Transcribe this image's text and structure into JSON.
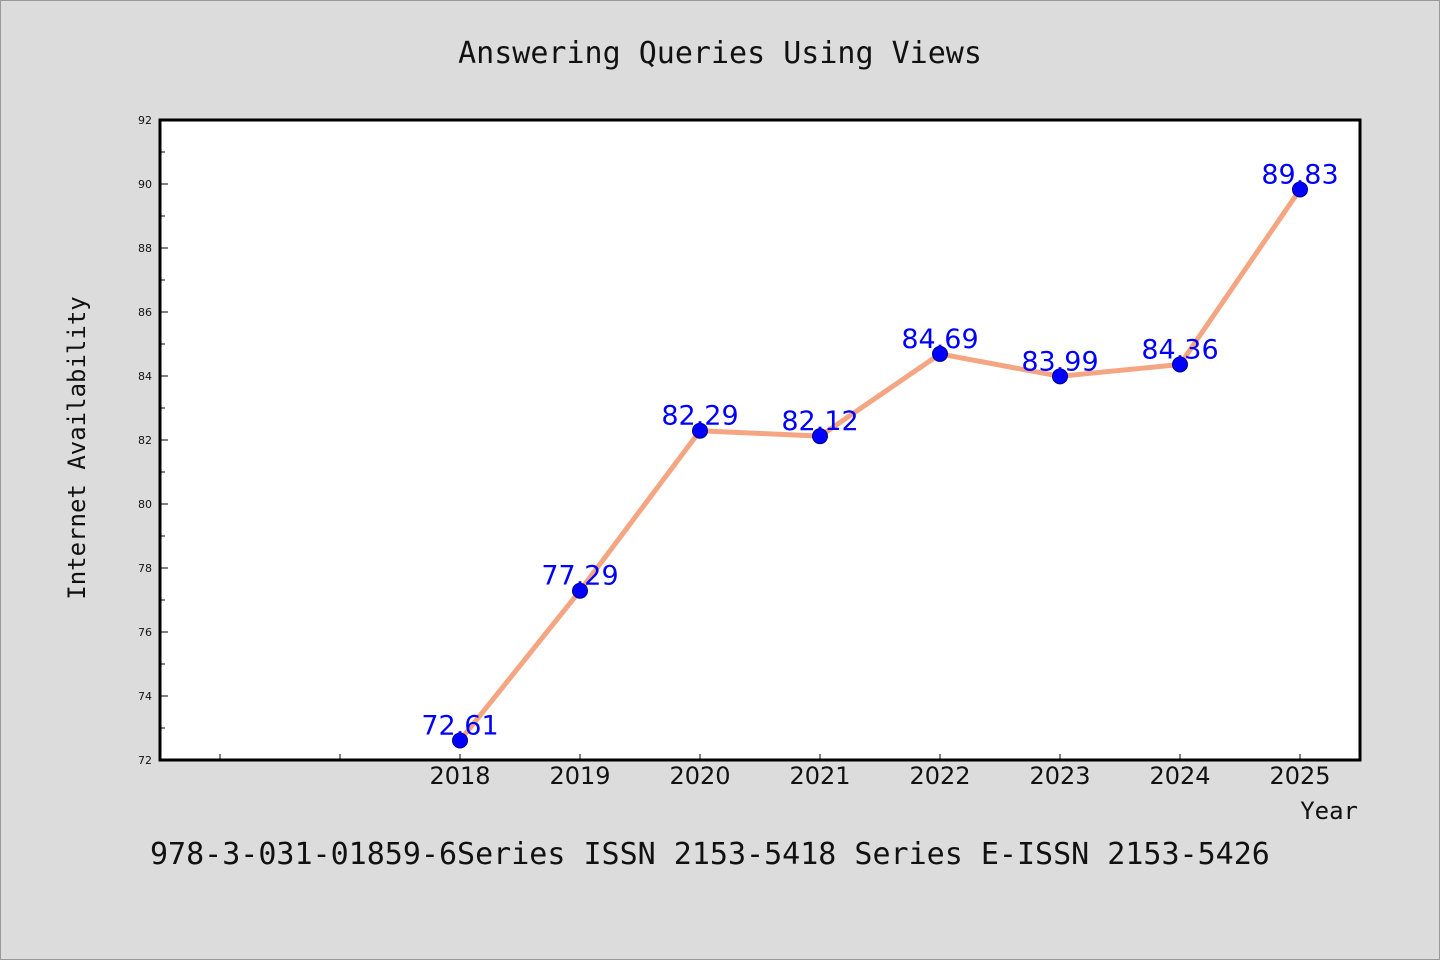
{
  "chart_data": {
    "type": "line",
    "title": "Answering Queries Using Views",
    "xlabel": "Year",
    "ylabel": "Internet Availability",
    "categories": [
      "",
      "",
      "2018",
      "2019",
      "2020",
      "2021",
      "2022",
      "2023",
      "2024",
      "2025"
    ],
    "series": [
      {
        "values": [
          null,
          null,
          72.61,
          77.29,
          82.29,
          82.12,
          84.69,
          83.99,
          84.36,
          89.83
        ],
        "labels": [
          "",
          "",
          "72.61",
          "77.29",
          "82.29",
          "82.12",
          "84.69",
          "83.99",
          "84.36",
          "89.83"
        ],
        "line_color": "#f4a582",
        "marker_color": "#0000ff",
        "label_color": "#0000ff"
      }
    ],
    "ylim": [
      72,
      92
    ],
    "yticks": [
      "72",
      "74",
      "76",
      "78",
      "80",
      "82",
      "84",
      "86",
      "88",
      "90",
      "92"
    ],
    "grid": false,
    "background": "#dcdcdc",
    "plot_background": "#ffffff"
  },
  "footer_text": "978-3-031-01859-6Series ISSN 2153-5418 Series E-ISSN 2153-5426"
}
